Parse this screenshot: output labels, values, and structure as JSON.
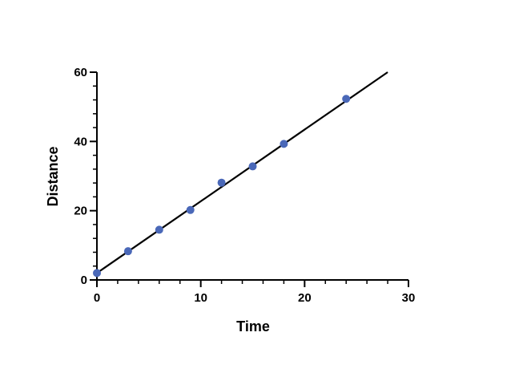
{
  "chart_data": {
    "type": "scatter",
    "title": "",
    "xlabel": "Time",
    "ylabel": "Distance",
    "xlim": [
      0,
      30
    ],
    "ylim": [
      0,
      60
    ],
    "x_ticks": [
      0,
      10,
      20,
      30
    ],
    "y_ticks": [
      0,
      20,
      40,
      60
    ],
    "x_minor_step": 2,
    "y_minor_step": 4,
    "grid": false,
    "legend": "none",
    "point_color": "#4a68b8",
    "line_color": "#000000",
    "points": {
      "x": [
        0,
        3,
        6,
        9,
        12,
        15,
        18,
        24
      ],
      "y": [
        2.0,
        8.3,
        14.5,
        20.2,
        28.1,
        32.8,
        39.3,
        52.3
      ]
    },
    "fit_line": {
      "x": [
        0,
        28
      ],
      "y": [
        2.0,
        60.0
      ]
    }
  }
}
